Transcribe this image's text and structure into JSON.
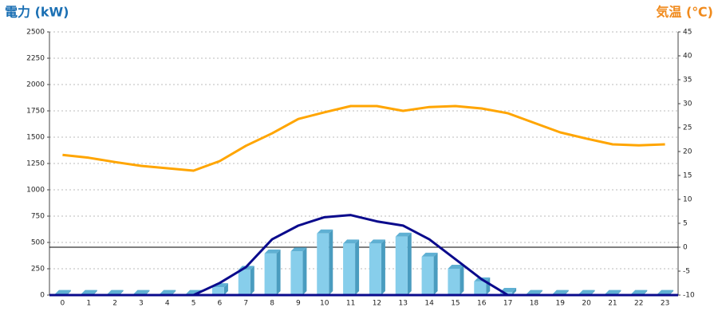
{
  "chart_data": {
    "type": "combo",
    "title_left": "電力 (kW)",
    "title_right": "気温 (℃)",
    "title_left_color": "#1a6fb3",
    "title_right_color": "#f08a1c",
    "categories": [
      "0",
      "1",
      "2",
      "3",
      "4",
      "5",
      "6",
      "7",
      "8",
      "9",
      "10",
      "11",
      "12",
      "13",
      "14",
      "15",
      "16",
      "17",
      "18",
      "19",
      "20",
      "21",
      "22",
      "23"
    ],
    "ylim": [
      0,
      2500
    ],
    "yticks": [
      0,
      250,
      500,
      750,
      1000,
      1250,
      1500,
      1750,
      2000,
      2250,
      2500
    ],
    "y2lim": [
      -10,
      45
    ],
    "y2ticks": [
      -10,
      -5,
      0,
      5,
      10,
      15,
      20,
      25,
      30,
      35,
      40,
      45
    ],
    "grid": true,
    "y2_zero_line": true,
    "series": [
      {
        "type": "bar",
        "color": "#87ceeb",
        "values": [
          10,
          10,
          10,
          10,
          10,
          10,
          75,
          240,
          395,
          415,
          585,
          490,
          490,
          555,
          365,
          250,
          130,
          30,
          10,
          10,
          10,
          10,
          10,
          10
        ]
      },
      {
        "type": "line",
        "color": "#0a0a8c",
        "values": [
          0,
          0,
          0,
          0,
          0,
          0,
          115,
          265,
          530,
          660,
          740,
          760,
          700,
          660,
          530,
          340,
          150,
          0,
          0,
          0,
          0,
          0,
          0,
          0
        ]
      },
      {
        "type": "line",
        "color": "#ffa500",
        "axis": "y2",
        "values": [
          19.3,
          18.7,
          17.8,
          17,
          16.5,
          16,
          18,
          21.2,
          23.8,
          26.8,
          28.2,
          29.5,
          29.5,
          28.5,
          29.3,
          29.5,
          29,
          28,
          26,
          24,
          22.7,
          21.5,
          21.3,
          21.5
        ]
      }
    ]
  }
}
